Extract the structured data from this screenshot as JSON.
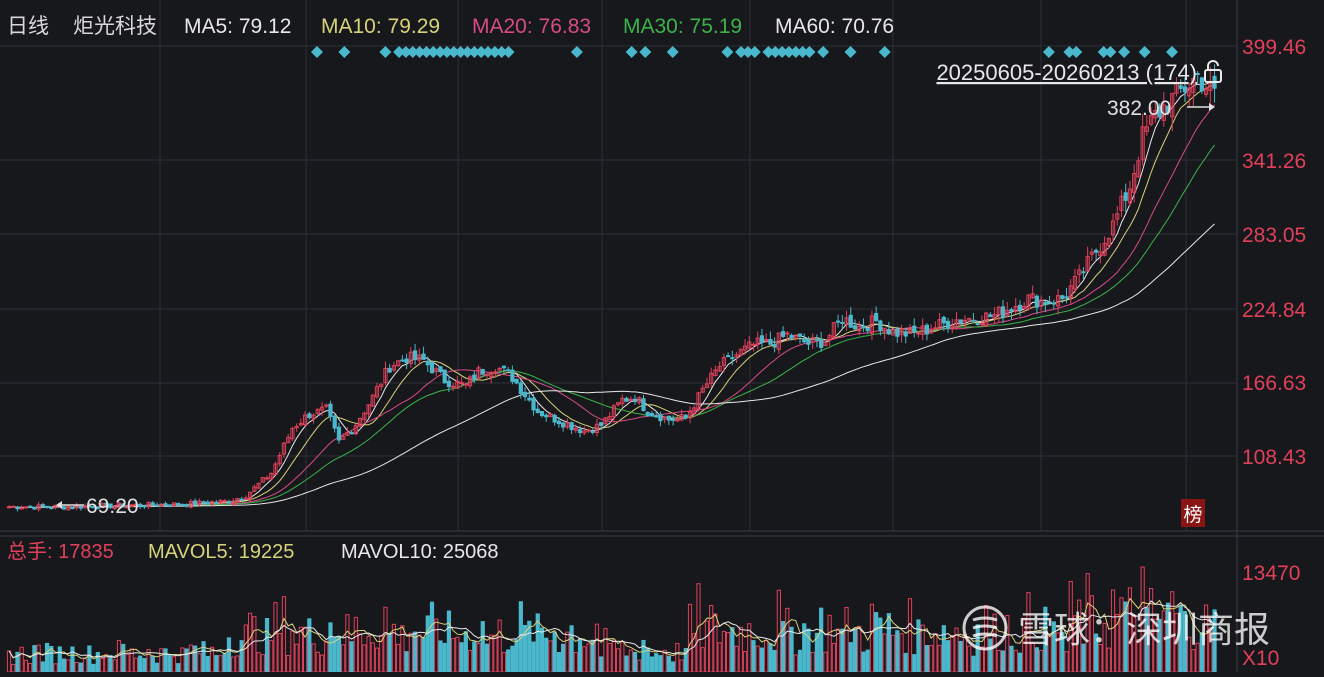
{
  "colors": {
    "background": "#17181c",
    "grid": "#2c2f36",
    "up": "#e0405a",
    "down": "#4ab8cc",
    "marker": "#4ab8cc",
    "ma5": "#e8e8e8",
    "ma10": "#d8d37a",
    "ma20": "#d84b86",
    "ma30": "#3cb34a",
    "ma60": "#e8e8e8",
    "axis_text": "#e0405a"
  },
  "header": {
    "period": "日线",
    "name": "炬光科技",
    "ma5": "MA5: 79.12",
    "ma10": "MA10: 79.29",
    "ma20": "MA20: 76.83",
    "ma30": "MA30: 75.19",
    "ma60": "MA60: 70.76"
  },
  "range_label": "20250605-20260213 (174)",
  "lock_icon": "lock-icon",
  "price_axis": [
    "399.46",
    "341.26",
    "283.05",
    "224.84",
    "166.63",
    "108.43"
  ],
  "max_label": "382.00",
  "min_label": "69.20",
  "rank_badge": "榜",
  "volume_header": {
    "label": "总手: 17835",
    "mavol5": "MAVOL5: 19225",
    "mavol10": "MAVOL10: 25068"
  },
  "volume_axis": [
    "13470",
    "X10"
  ],
  "watermark": "雪球：深圳商报",
  "chart_data": {
    "type": "candlestick",
    "title": "炬光科技 日线",
    "date_range": "20250605-20260213",
    "count": 174,
    "y_ticks": [
      399.46,
      341.26,
      283.05,
      224.84,
      166.63,
      108.43
    ],
    "y_range": [
      52,
      420
    ],
    "max_price": 382.0,
    "min_price": 69.2,
    "volume_max_tick": 13470,
    "volume_unit": "X10",
    "anchors": [
      [
        0,
        72
      ],
      [
        14,
        72
      ],
      [
        28,
        73
      ],
      [
        42,
        74
      ],
      [
        52,
        76
      ],
      [
        56,
        80
      ],
      [
        62,
        96
      ],
      [
        67,
        128
      ],
      [
        71,
        138
      ],
      [
        75,
        141
      ],
      [
        78,
        118
      ],
      [
        82,
        131
      ],
      [
        86,
        150
      ],
      [
        90,
        172
      ],
      [
        94,
        178
      ],
      [
        98,
        176
      ],
      [
        103,
        162
      ],
      [
        108,
        158
      ],
      [
        111,
        168
      ],
      [
        115,
        172
      ],
      [
        119,
        164
      ],
      [
        125,
        140
      ],
      [
        131,
        132
      ],
      [
        136,
        126
      ],
      [
        140,
        130
      ],
      [
        145,
        148
      ],
      [
        148,
        150
      ],
      [
        151,
        140
      ],
      [
        156,
        134
      ],
      [
        160,
        135
      ],
      [
        164,
        155
      ],
      [
        168,
        172
      ],
      [
        172,
        180
      ],
      [
        176,
        187
      ],
      [
        180,
        188
      ],
      [
        184,
        194
      ],
      [
        189,
        188
      ],
      [
        193,
        190
      ],
      [
        197,
        206
      ],
      [
        201,
        200
      ],
      [
        205,
        204
      ],
      [
        209,
        196
      ],
      [
        213,
        195
      ],
      [
        217,
        198
      ],
      [
        221,
        202
      ],
      [
        224,
        205
      ],
      [
        228,
        206
      ],
      [
        233,
        208
      ],
      [
        237,
        214
      ],
      [
        241,
        220
      ],
      [
        245,
        218
      ],
      [
        249,
        220
      ],
      [
        253,
        235
      ],
      [
        257,
        254
      ],
      [
        261,
        272
      ],
      [
        265,
        300
      ],
      [
        268,
        335
      ],
      [
        271,
        350
      ],
      [
        275,
        362
      ],
      [
        278,
        370
      ],
      [
        281,
        378
      ],
      [
        285,
        365
      ]
    ],
    "markers": [
      52,
      56,
      62,
      64,
      65,
      66,
      67,
      68,
      69,
      70,
      71,
      72,
      73,
      74,
      75,
      76,
      77,
      78,
      79,
      80,
      90,
      98,
      100,
      104,
      112,
      114,
      115,
      116,
      118,
      119,
      120,
      121,
      122,
      123,
      124,
      126,
      130,
      135,
      159,
      162,
      163,
      167,
      168,
      170,
      173,
      177
    ]
  }
}
